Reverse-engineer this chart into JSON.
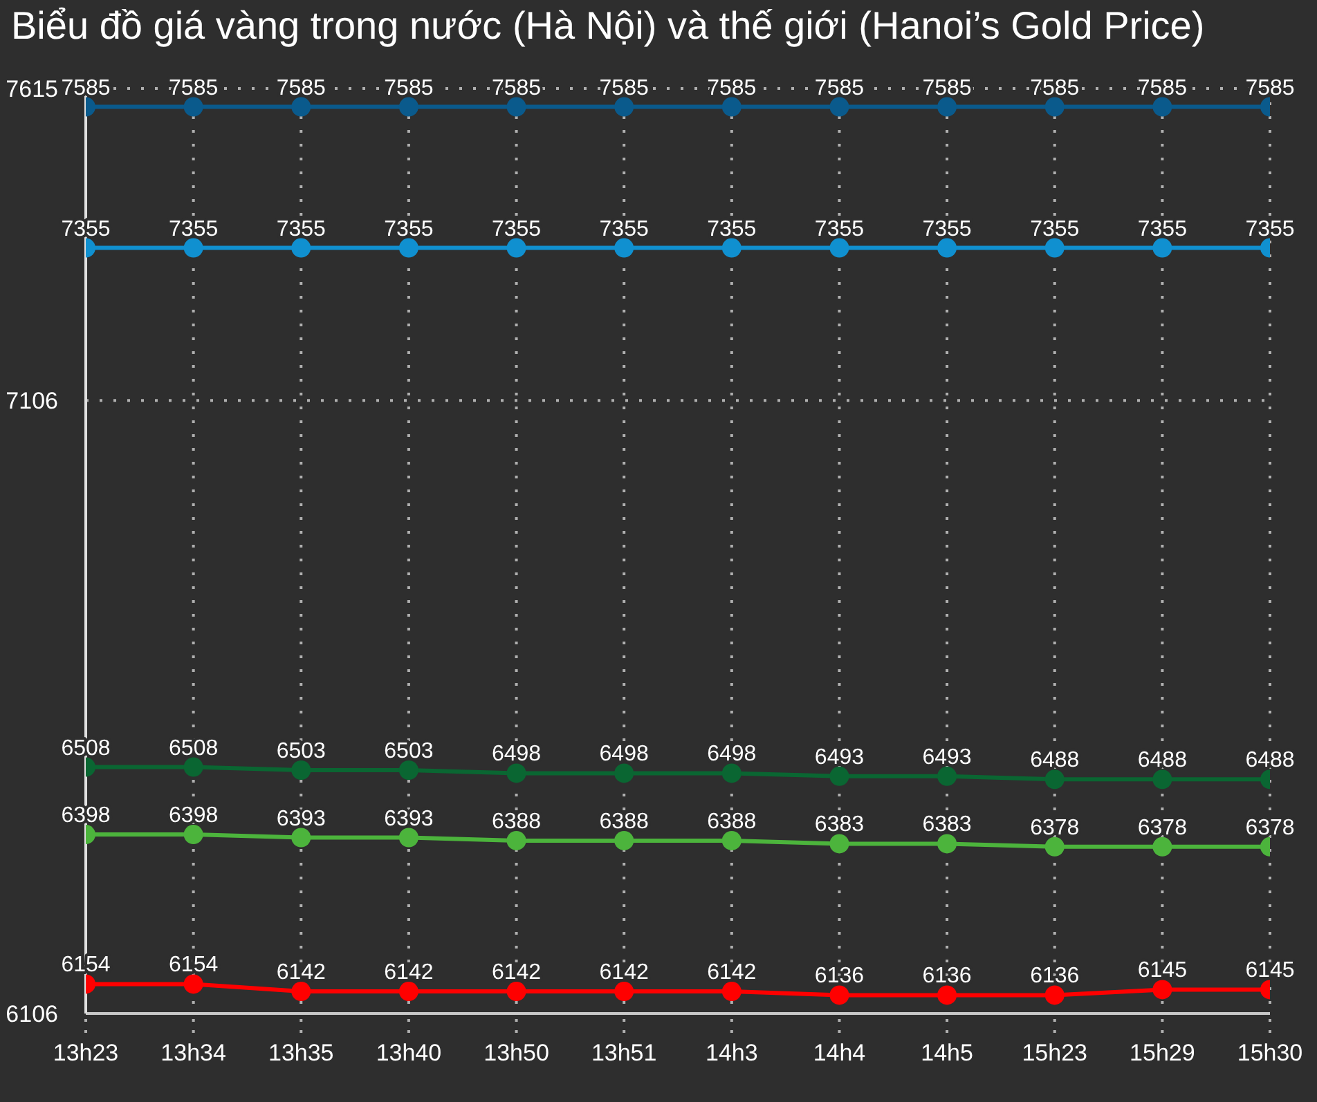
{
  "chart_data": {
    "type": "line",
    "title": "Biểu đồ giá vàng trong nước (Hà Nội) và thế giới (Hanoi’s Gold Price)",
    "categories": [
      "13h23",
      "13h34",
      "13h35",
      "13h40",
      "13h50",
      "13h51",
      "14h3",
      "14h4",
      "14h5",
      "15h23",
      "15h29",
      "15h30"
    ],
    "series": [
      {
        "color": "#0a5a8c",
        "values": [
          7585,
          7585,
          7585,
          7585,
          7585,
          7585,
          7585,
          7585,
          7585,
          7585,
          7585,
          7585
        ]
      },
      {
        "color": "#1090d0",
        "values": [
          7355,
          7355,
          7355,
          7355,
          7355,
          7355,
          7355,
          7355,
          7355,
          7355,
          7355,
          7355
        ]
      },
      {
        "color": "#0a6632",
        "values": [
          6508,
          6508,
          6503,
          6503,
          6498,
          6498,
          6498,
          6493,
          6493,
          6488,
          6488,
          6488
        ]
      },
      {
        "color": "#4cb43c",
        "values": [
          6398,
          6398,
          6393,
          6393,
          6388,
          6388,
          6388,
          6383,
          6383,
          6378,
          6378,
          6378
        ]
      },
      {
        "color": "#ff0000",
        "values": [
          6154,
          6154,
          6142,
          6142,
          6142,
          6142,
          6142,
          6136,
          6136,
          6136,
          6145,
          6145
        ]
      }
    ],
    "ylim": [
      6106,
      7615
    ],
    "yticks": [
      6106,
      7106,
      7615
    ],
    "grid": true,
    "data_labels": true,
    "marker": "circle",
    "line_style": "solid"
  }
}
